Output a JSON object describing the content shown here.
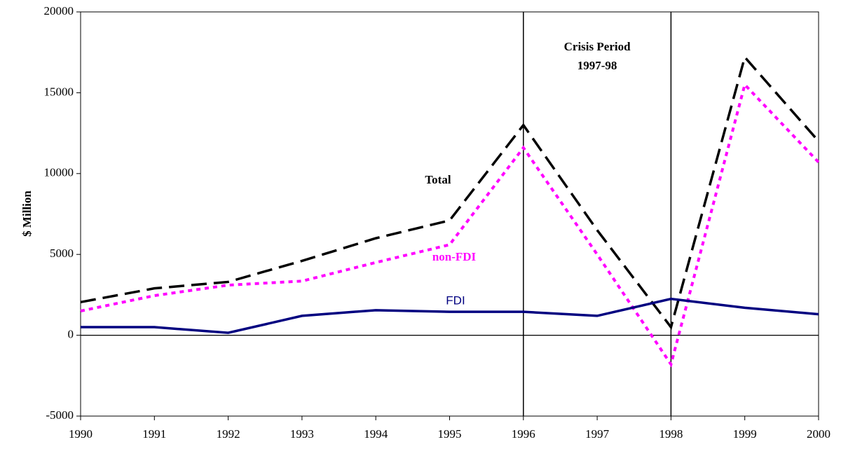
{
  "chart_data": {
    "type": "line",
    "y_label": "$ Million",
    "x": [
      1990,
      1991,
      1992,
      1993,
      1994,
      1995,
      1996,
      1997,
      1998,
      1999,
      2000
    ],
    "xlim": [
      1990,
      2000
    ],
    "xticks": [
      1990,
      1991,
      1992,
      1993,
      1994,
      1995,
      1996,
      1997,
      1998,
      1999,
      2000
    ],
    "ylim": [
      -5000,
      20000
    ],
    "yticks": [
      -5000,
      0,
      5000,
      10000,
      15000,
      20000
    ],
    "vlines": [
      1996,
      1998
    ],
    "annotation": [
      "Crisis Period",
      "1997-98"
    ],
    "series": [
      {
        "name": "Total",
        "color": "#000000",
        "style": "dashed",
        "values": [
          2050,
          2900,
          3300,
          4600,
          6000,
          7100,
          13000,
          6500,
          500,
          17200,
          12000
        ]
      },
      {
        "name": "non-FDI",
        "color": "#ff00ff",
        "style": "dotted",
        "values": [
          1500,
          2450,
          3100,
          3350,
          4500,
          5600,
          11600,
          5000,
          -1800,
          15500,
          10700
        ]
      },
      {
        "name": "FDI",
        "color": "#000080",
        "style": "solid",
        "values": [
          500,
          500,
          150,
          1200,
          1550,
          1450,
          1450,
          1200,
          2250,
          1700,
          1300
        ]
      }
    ]
  }
}
